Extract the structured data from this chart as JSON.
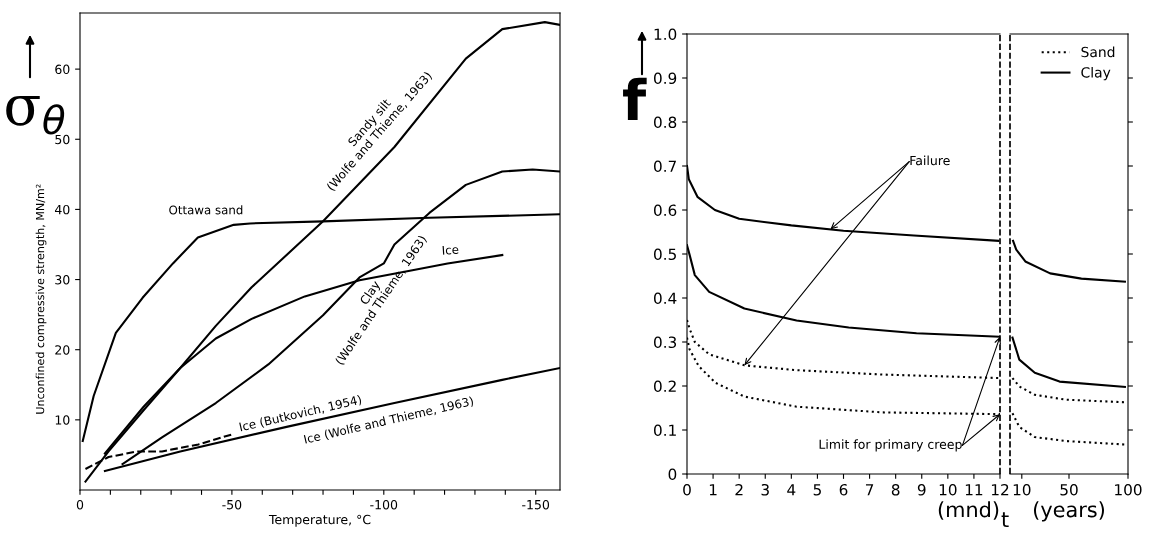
{
  "chart_data": [
    {
      "type": "line",
      "xlabel": "Temperature, °C",
      "ylabel": "Unconfined compressive strength, MN/m²",
      "annotations": [
        "σ$_{θ}$"
      ],
      "xlim": [
        0,
        -158
      ],
      "ylim": [
        0,
        68
      ],
      "xticks": [
        0,
        {
          "value": -10,
          "label": null
        },
        {
          "value": -20,
          "label": null
        },
        {
          "value": -30,
          "label": null
        },
        {
          "value": -40,
          "label": null
        },
        {
          "value": -50,
          "label": "-50"
        },
        {
          "value": -60,
          "label": null
        },
        {
          "value": -70,
          "label": null
        },
        {
          "value": -80,
          "label": null
        },
        {
          "value": -90,
          "label": null
        },
        {
          "value": -100,
          "label": "-100"
        },
        {
          "value": -110,
          "label": null
        },
        {
          "value": -120,
          "label": null
        },
        {
          "value": -130,
          "label": null
        },
        {
          "value": -140,
          "label": null
        },
        {
          "value": -150,
          "label": "-150"
        }
      ],
      "yticks": [
        10,
        20,
        30,
        40,
        50,
        60
      ],
      "marker": "none",
      "grid": false,
      "legend": false,
      "series": [
        {
          "name": "Ottawa sand",
          "color": "#000000",
          "x": [
            -0.9,
            -4.5,
            -11.8,
            -20.6,
            -30.6,
            -38.8,
            -50.6,
            -56,
            -80,
            -115,
            -158
          ],
          "values": [
            7,
            13.4,
            22.4,
            27.4,
            32.3,
            36,
            37.8,
            38,
            38.3,
            38.8,
            39.3
          ]
        },
        {
          "name": "Sandy silt\n(Wolfe and Thieme, 1963)",
          "color": "#000000",
          "x": [
            -1.8,
            -9.4,
            -21,
            -33,
            -44.7,
            -56.5,
            -80,
            -103.5,
            -127,
            -139,
            -153,
            -158
          ],
          "values": [
            1.2,
            5.5,
            11.4,
            17.4,
            23.4,
            28.9,
            38.3,
            48.9,
            61.5,
            65.7,
            66.7,
            66.3
          ]
        },
        {
          "name": "Clay\n(Wolfe and Thieme, 1963)",
          "color": "#000000",
          "x": [
            -14,
            -27,
            -44.7,
            -62,
            -80,
            -92,
            -100,
            -103.5,
            -115,
            -127,
            -139,
            -149,
            -158
          ],
          "values": [
            3.7,
            7.5,
            12.4,
            17.9,
            24.9,
            30.3,
            32.3,
            35,
            39.5,
            43.5,
            45.4,
            45.7,
            45.4
          ]
        },
        {
          "name": "Ice",
          "color": "#000000",
          "x": [
            -8.2,
            -21,
            -33,
            -44.7,
            -56.5,
            -74,
            -92,
            -109,
            -121,
            -139
          ],
          "values": [
            5.2,
            11.9,
            17.4,
            21.6,
            24.4,
            27.6,
            29.9,
            31.3,
            32.3,
            33.5
          ]
        },
        {
          "name": "Ice (Butkovich, 1954)",
          "color": "#000000",
          "line_style": "dashed",
          "x": [
            -1.8,
            -9.4,
            -18.8,
            -27,
            -39,
            -50.6
          ],
          "values": [
            3,
            4.7,
            5.5,
            5.5,
            6.5,
            8
          ]
        },
        {
          "name": "Ice (Wolfe and Thieme, 1963)",
          "color": "#000000",
          "x": [
            -8.2,
            -33,
            -68,
            -103.5,
            -139,
            -158
          ],
          "values": [
            2.7,
            5.5,
            9,
            12.4,
            15.7,
            17.4
          ]
        }
      ]
    },
    {
      "type": "line",
      "xlabel": "(mnd)",
      "annotations": [
        "f",
        "t",
        {
          "text": "Failure",
          "x": 5.5,
          "y": 0.556
        },
        {
          "text": "Limit for primary creep",
          "x": 12,
          "y": 0.312
        }
      ],
      "xlim": [
        0,
        12
      ],
      "ylim": [
        0,
        1.0
      ],
      "xticks": [
        0,
        1,
        2,
        3,
        4,
        5,
        6,
        7,
        8,
        9,
        10,
        11,
        12
      ],
      "yticks": [
        0,
        0.1,
        0.2,
        0.3,
        0.4,
        0.5,
        0.6,
        0.7,
        0.8,
        0.9,
        {
          "value": 1,
          "label": "1.0"
        }
      ],
      "marker": "none",
      "grid": false,
      "legend": false,
      "ref_lines": [
        {
          "axis": "x",
          "value": 12,
          "line_style": "dashed"
        }
      ],
      "series": [
        {
          "color": "#000000",
          "line_style": "solid",
          "x": [
            0,
            0.07,
            0.4,
            1.07,
            2,
            4,
            6,
            8.7,
            11.93
          ],
          "values": [
            0.7,
            0.67,
            0.63,
            0.6,
            0.58,
            0.565,
            0.553,
            0.542,
            0.53
          ]
        },
        {
          "color": "#000000",
          "line_style": "solid",
          "x": [
            0,
            0.1,
            0.3,
            0.85,
            2.2,
            4.2,
            6.2,
            8.8,
            12
          ],
          "values": [
            0.52,
            0.498,
            0.452,
            0.414,
            0.376,
            0.349,
            0.333,
            0.32,
            0.312
          ]
        },
        {
          "color": "#000000",
          "line_style": "dotted",
          "x": [
            0,
            0.1,
            0.3,
            0.85,
            2.2,
            4.2,
            7.5,
            12
          ],
          "values": [
            0.35,
            0.33,
            0.3,
            0.272,
            0.247,
            0.236,
            0.226,
            0.218
          ]
        },
        {
          "color": "#000000",
          "line_style": "dotted",
          "x": [
            0,
            0.1,
            0.45,
            1.1,
            2.2,
            4.2,
            7.5,
            12
          ],
          "values": [
            0.31,
            0.283,
            0.245,
            0.207,
            0.176,
            0.153,
            0.14,
            0.136
          ]
        }
      ]
    },
    {
      "type": "line",
      "xlabel": "(years)",
      "xlim": [
        0,
        100
      ],
      "ylim": [
        0,
        1.0
      ],
      "xticks": [
        10,
        50,
        100
      ],
      "yticks": [
        {
          "value": 0.1,
          "label": null
        },
        {
          "value": 0.2,
          "label": null
        },
        {
          "value": 0.3,
          "label": null
        },
        {
          "value": 0.4,
          "label": null
        },
        {
          "value": 0.5,
          "label": null
        },
        {
          "value": 0.6,
          "label": null
        },
        {
          "value": 0.7,
          "label": null
        },
        {
          "value": 0.8,
          "label": null
        },
        {
          "value": 0.9,
          "label": null
        }
      ],
      "tick_labels": "x",
      "marker": "none",
      "grid": false,
      "legend": "top right",
      "ref_lines": [
        {
          "axis": "x",
          "value": 0,
          "line_style": "dashed"
        }
      ],
      "series": [
        {
          "name": "Sand",
          "color": "#000000",
          "line_style": "dotted",
          "x": [
            2.1,
            7.9,
            21,
            47,
            97.4
          ],
          "values": [
            0.218,
            0.199,
            0.18,
            0.169,
            0.163
          ]
        },
        {
          "name": "Clay",
          "color": "#000000",
          "line_style": "solid",
          "x": [
            2.6,
            5.3,
            13,
            34,
            60.5,
            97.4
          ],
          "values": [
            0.53,
            0.51,
            0.483,
            0.456,
            0.444,
            0.437
          ]
        },
        {
          "color": "#000000",
          "line_style": "solid",
          "x": [
            2.1,
            7.9,
            21,
            42,
            97.4
          ],
          "values": [
            0.31,
            0.26,
            0.23,
            0.21,
            0.198
          ]
        },
        {
          "color": "#000000",
          "line_style": "dotted",
          "x": [
            2.1,
            7.9,
            21,
            47,
            97.4
          ],
          "values": [
            0.138,
            0.107,
            0.084,
            0.075,
            0.067
          ]
        }
      ]
    }
  ]
}
